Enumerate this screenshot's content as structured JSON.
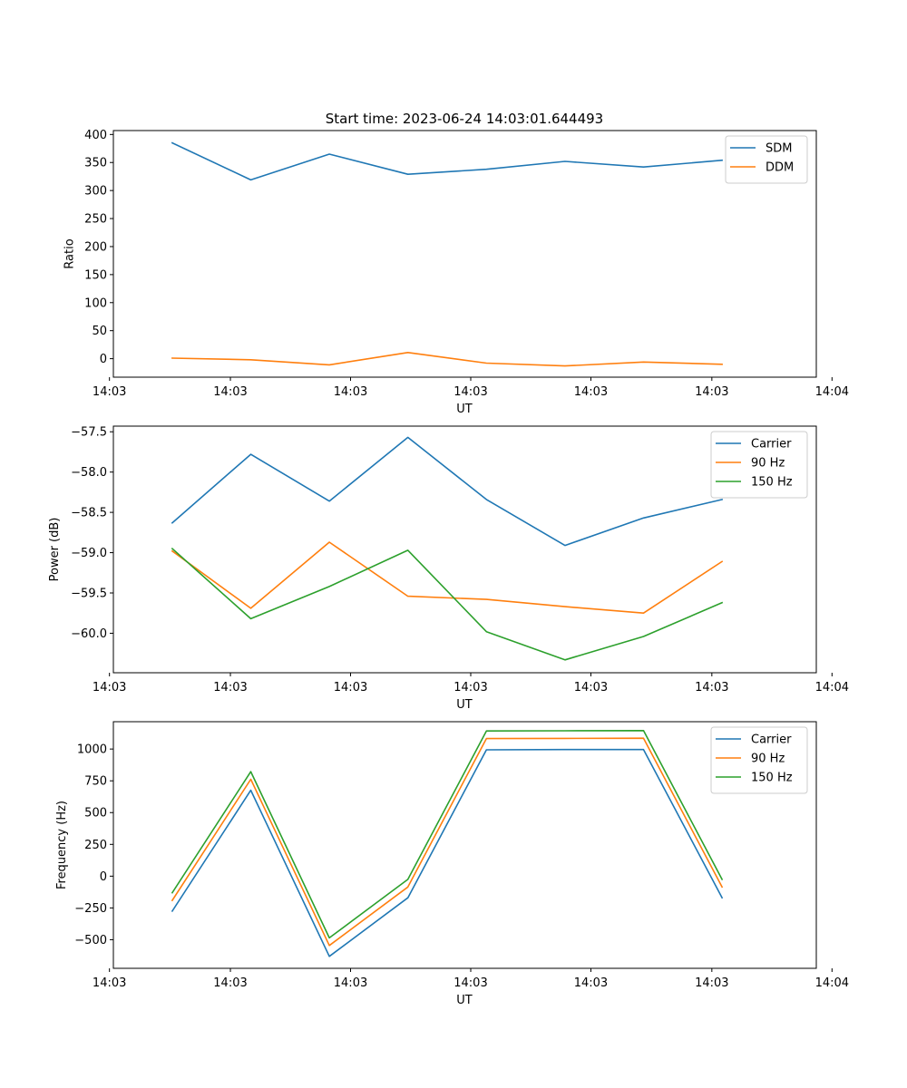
{
  "figure": {
    "title": "Start time: 2023-06-24 14:03:01.644493"
  },
  "chart_data": [
    {
      "type": "line",
      "title": "Start time: 2023-06-24 14:03:01.644493",
      "xlabel": "UT",
      "ylabel": "Ratio",
      "x": [
        1,
        2,
        3,
        4,
        5,
        6,
        7,
        8
      ],
      "xlim": [
        0.25,
        9.2
      ],
      "ylim": [
        -33,
        407
      ],
      "x_ticks": [
        0.2,
        1.74,
        3.27,
        4.8,
        6.33,
        7.87,
        9.4
      ],
      "x_tick_labels": [
        "14:03",
        "14:03",
        "14:03",
        "14:03",
        "14:03",
        "14:03",
        "14:04"
      ],
      "y_ticks": [
        0,
        50,
        100,
        150,
        200,
        250,
        300,
        350,
        400
      ],
      "y_tick_labels": [
        "0",
        "50",
        "100",
        "150",
        "200",
        "250",
        "300",
        "350",
        "400"
      ],
      "legend": "top-right",
      "grid": false,
      "series": [
        {
          "name": "SDM",
          "color": "#1f77b4",
          "values": [
            385,
            319,
            365,
            329,
            338,
            352,
            342,
            354
          ]
        },
        {
          "name": "DDM",
          "color": "#ff7f0e",
          "values": [
            1,
            -2,
            -11,
            11,
            -8,
            -13,
            -6,
            -10
          ]
        }
      ]
    },
    {
      "type": "line",
      "title": "",
      "xlabel": "UT",
      "ylabel": "Power (dB)",
      "x": [
        1,
        2,
        3,
        4,
        5,
        6,
        7,
        8
      ],
      "xlim": [
        0.25,
        9.2
      ],
      "ylim": [
        -60.49,
        -57.43
      ],
      "x_ticks": [
        0.2,
        1.74,
        3.27,
        4.8,
        6.33,
        7.87,
        9.4
      ],
      "x_tick_labels": [
        "14:03",
        "14:03",
        "14:03",
        "14:03",
        "14:03",
        "14:03",
        "14:04"
      ],
      "y_ticks": [
        -60.0,
        -59.5,
        -59.0,
        -58.5,
        -58.0,
        -57.5
      ],
      "y_tick_labels": [
        "−60.0",
        "−59.5",
        "−59.0",
        "−58.5",
        "−58.0",
        "−57.5"
      ],
      "legend": "top-right",
      "grid": false,
      "series": [
        {
          "name": "Carrier",
          "color": "#1f77b4",
          "values": [
            -58.63,
            -57.78,
            -58.36,
            -57.57,
            -58.34,
            -58.91,
            -58.57,
            -58.34
          ]
        },
        {
          "name": "90 Hz",
          "color": "#ff7f0e",
          "values": [
            -58.98,
            -59.69,
            -58.87,
            -59.54,
            -59.58,
            -59.67,
            -59.75,
            -59.11
          ]
        },
        {
          "name": "150 Hz",
          "color": "#2ca02c",
          "values": [
            -58.95,
            -59.82,
            -59.42,
            -58.97,
            -59.98,
            -60.33,
            -60.04,
            -59.62
          ]
        }
      ]
    },
    {
      "type": "line",
      "title": "",
      "xlabel": "UT",
      "ylabel": "Frequency (Hz)",
      "x": [
        1,
        2,
        3,
        4,
        5,
        6,
        7,
        8
      ],
      "xlim": [
        0.25,
        9.2
      ],
      "ylim": [
        -725,
        1215
      ],
      "x_ticks": [
        0.2,
        1.74,
        3.27,
        4.8,
        6.33,
        7.87,
        9.4
      ],
      "x_tick_labels": [
        "14:03",
        "14:03",
        "14:03",
        "14:03",
        "14:03",
        "14:03",
        "14:04"
      ],
      "y_ticks": [
        -500,
        -250,
        0,
        250,
        500,
        750,
        1000
      ],
      "y_tick_labels": [
        "−500",
        "−250",
        "0",
        "250",
        "500",
        "750",
        "1000"
      ],
      "legend": "top-right",
      "grid": false,
      "series": [
        {
          "name": "Carrier",
          "color": "#1f77b4",
          "values": [
            -275,
            676,
            -631,
            -170,
            994,
            996,
            996,
            -170
          ]
        },
        {
          "name": "90 Hz",
          "color": "#ff7f0e",
          "values": [
            -191,
            762,
            -545,
            -85,
            1082,
            1084,
            1085,
            -85
          ]
        },
        {
          "name": "150 Hz",
          "color": "#2ca02c",
          "values": [
            -131,
            822,
            -485,
            -25,
            1142,
            1144,
            1145,
            -25
          ]
        }
      ]
    }
  ]
}
